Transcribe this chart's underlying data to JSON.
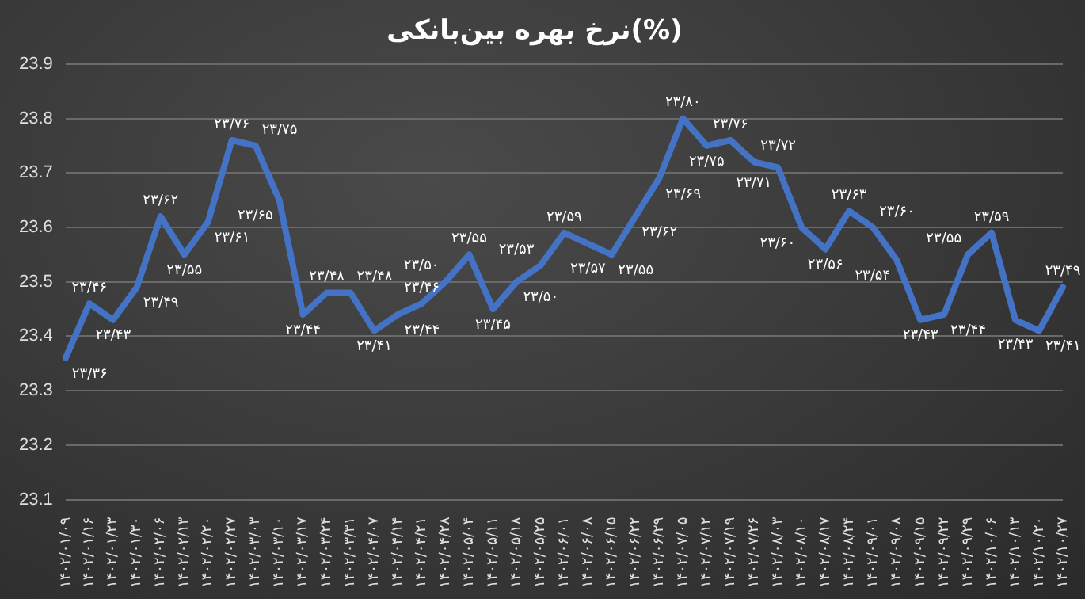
{
  "chart_data": {
    "type": "line",
    "title": "نرخ بهره بین‌بانکی(%)",
    "categories": [
      "۱۴۰۲/۰۱/۰۹",
      "۱۴۰۲/۰۱/۱۶",
      "۱۴۰۲/۰۱/۲۳",
      "۱۴۰۲/۰۱/۳۰",
      "۱۴۰۲/۰۲/۰۶",
      "۱۴۰۲/۰۲/۱۳",
      "۱۴۰۲/۰۲/۲۰",
      "۱۴۰۲/۰۲/۲۷",
      "۱۴۰۲/۰۳/۰۳",
      "۱۴۰۲/۰۳/۱۰",
      "۱۴۰۲/۰۳/۱۷",
      "۱۴۰۲/۰۳/۲۴",
      "۱۴۰۲/۰۳/۳۱",
      "۱۴۰۲/۰۴/۰۷",
      "۱۴۰۲/۰۴/۱۴",
      "۱۴۰۲/۰۴/۲۱",
      "۱۴۰۲/۰۴/۲۸",
      "۱۴۰۲/۰۵/۰۴",
      "۱۴۰۲/۰۵/۱۱",
      "۱۴۰۲/۰۵/۱۸",
      "۱۴۰۲/۰۵/۲۵",
      "۱۴۰۲/۰۶/۰۱",
      "۱۴۰۲/۰۶/۰۸",
      "۱۴۰۲/۰۶/۱۵",
      "۱۴۰۲/۰۶/۲۲",
      "۱۴۰۲/۰۶/۲۹",
      "۱۴۰۲/۰۷/۰۵",
      "۱۴۰۲/۰۷/۱۲",
      "۱۴۰۲/۰۷/۱۹",
      "۱۴۰۲/۰۷/۲۶",
      "۱۴۰۲/۰۸/۰۳",
      "۱۴۰۲/۰۸/۱۰",
      "۱۴۰۲/۰۸/۱۷",
      "۱۴۰۲/۰۸/۲۴",
      "۱۴۰۲/۰۹/۰۱",
      "۱۴۰۲/۰۹/۰۸",
      "۱۴۰۲/۰۹/۱۵",
      "۱۴۰۲/۰۹/۲۲",
      "۱۴۰۲/۰۹/۲۹",
      "۱۴۰۲/۱۰/۰۶",
      "۱۴۰۲/۱۰/۱۳",
      "۱۴۰۲/۱۰/۲۰",
      "۱۴۰۲/۱۰/۲۷"
    ],
    "series": [
      {
        "color": "#4472c4",
        "values": [
          23.36,
          23.46,
          23.43,
          23.49,
          23.62,
          23.55,
          23.61,
          23.76,
          23.75,
          23.65,
          23.44,
          23.48,
          23.48,
          23.41,
          23.44,
          23.46,
          23.5,
          23.55,
          23.45,
          23.5,
          23.53,
          23.59,
          23.57,
          23.55,
          23.62,
          23.69,
          23.8,
          23.75,
          23.76,
          23.72,
          23.71,
          23.6,
          23.56,
          23.63,
          23.6,
          23.54,
          23.43,
          23.44,
          23.55,
          23.59,
          23.43,
          23.41,
          23.49
        ],
        "value_labels": [
          "۲۳/۳۶",
          "۲۳/۴۶",
          "۲۳/۴۳",
          "۲۳/۴۹",
          "۲۳/۶۲",
          "۲۳/۵۵",
          "۲۳/۶۱",
          "۲۳/۷۶",
          "۲۳/۷۵",
          "۲۳/۶۵",
          "۲۳/۴۴",
          "۲۳/۴۸",
          "۲۳/۴۸",
          "۲۳/۴۱",
          "۲۳/۴۴",
          "۲۳/۴۶",
          "۲۳/۵۰",
          "۲۳/۵۵",
          "۲۳/۴۵",
          "۲۳/۵۰",
          "۲۳/۵۳",
          "۲۳/۵۹",
          "۲۳/۵۷",
          "۲۳/۵۵",
          "۲۳/۶۲",
          "۲۳/۶۹",
          "۲۳/۸۰",
          "۲۳/۷۵",
          "۲۳/۷۶",
          "۲۳/۷۲",
          "۲۳/۷۱",
          "۲۳/۶۰",
          "۲۳/۵۶",
          "۲۳/۶۳",
          "۲۳/۶۰",
          "۲۳/۵۴",
          "۲۳/۴۳",
          "۲۳/۴۴",
          "۲۳/۵۵",
          "۲۳/۵۹",
          "۲۳/۴۳",
          "۲۳/۴۱",
          "۲۳/۴۹"
        ]
      }
    ],
    "ylim": [
      23.1,
      23.9
    ],
    "yticks": [
      23.1,
      23.2,
      23.3,
      23.4,
      23.5,
      23.6,
      23.7,
      23.8,
      23.9
    ],
    "grid": "y",
    "legend": false,
    "marker": "none",
    "line_style": "solid"
  }
}
